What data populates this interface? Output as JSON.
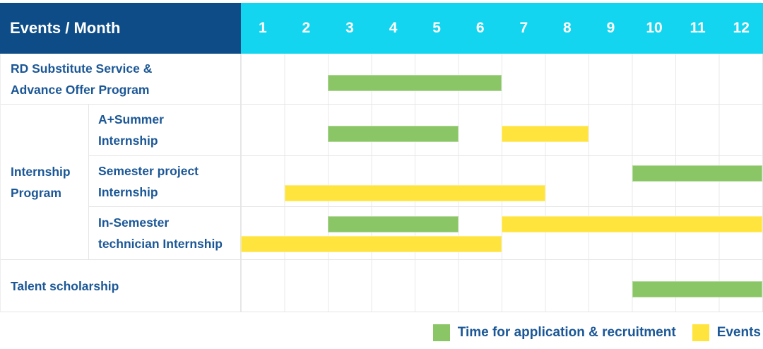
{
  "title_cell": "Events / Month",
  "months": [
    "1",
    "2",
    "3",
    "4",
    "5",
    "6",
    "7",
    "8",
    "9",
    "10",
    "11",
    "12"
  ],
  "colors": {
    "header_navy": "#0d4c86",
    "header_cyan": "#13d5ef",
    "green": "#8ac566",
    "yellow": "#ffe43d",
    "label_text": "#1b5796",
    "grid_line": "#e5e5e5"
  },
  "group_cell": {
    "name": "Internship Program",
    "label_lines": [
      "Internship",
      "Program"
    ]
  },
  "legend": [
    {
      "key": "application_recruitment",
      "label": "Time for application & recruitment",
      "color": "#8ac566"
    },
    {
      "key": "events",
      "label": "Events",
      "color": "#ffe43d"
    }
  ],
  "chart_data": {
    "type": "bar",
    "subtype": "gantt",
    "title": "Events / Month",
    "xlabel": "Month",
    "x_ticks": [
      1,
      2,
      3,
      4,
      5,
      6,
      7,
      8,
      9,
      10,
      11,
      12
    ],
    "x_range": [
      1,
      12
    ],
    "grid": true,
    "legend_position": "bottom-right",
    "series_legend": [
      "Time for application & recruitment",
      "Events"
    ],
    "rows": [
      {
        "event": "RD Substitute Service & Advance Offer Program",
        "label_lines": [
          "RD Substitute Service &",
          "Advance Offer Program"
        ],
        "group": null,
        "bars": [
          {
            "type": "application_recruitment",
            "start_month": 3,
            "end_month": 6,
            "lane": "mid"
          }
        ]
      },
      {
        "event": "A+Summer Internship",
        "label_lines": [
          "A+Summer",
          "Internship"
        ],
        "group": "Internship Program",
        "bars": [
          {
            "type": "application_recruitment",
            "start_month": 3,
            "end_month": 5,
            "lane": "mid"
          },
          {
            "type": "events",
            "start_month": 7,
            "end_month": 8,
            "lane": "mid"
          }
        ]
      },
      {
        "event": "Semester project Internship",
        "label_lines": [
          "Semester project",
          "Internship"
        ],
        "group": "Internship Program",
        "bars": [
          {
            "type": "application_recruitment",
            "start_month": 10,
            "end_month": 12,
            "lane": "top"
          },
          {
            "type": "events",
            "start_month": 2,
            "end_month": 7,
            "lane": "bottom"
          }
        ]
      },
      {
        "event": "In-Semester technician Internship",
        "label_lines": [
          "In-Semester",
          "technician Internship"
        ],
        "group": "Internship Program",
        "bars": [
          {
            "type": "application_recruitment",
            "start_month": 3,
            "end_month": 5,
            "lane": "top"
          },
          {
            "type": "events",
            "start_month": 7,
            "end_month": 12,
            "lane": "top"
          },
          {
            "type": "events",
            "start_month": 1,
            "end_month": 6,
            "lane": "bottom"
          }
        ]
      },
      {
        "event": "Talent scholarship",
        "label_lines": [
          "Talent scholarship"
        ],
        "group": null,
        "bars": [
          {
            "type": "application_recruitment",
            "start_month": 10,
            "end_month": 12,
            "lane": "mid"
          }
        ]
      }
    ]
  }
}
